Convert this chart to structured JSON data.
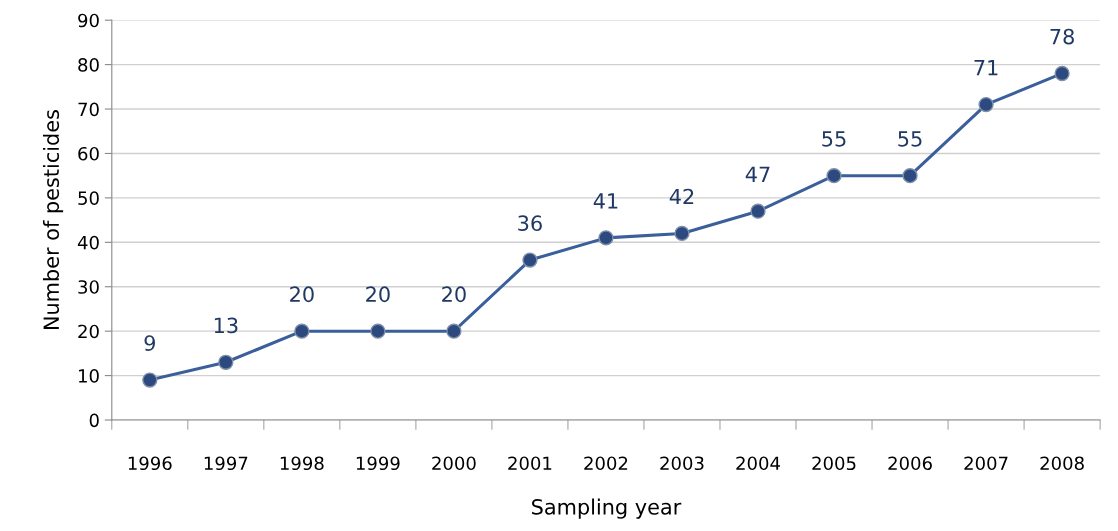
{
  "chart_data": {
    "type": "line",
    "xlabel": "Sampling year",
    "ylabel": "Number of pesticides",
    "categories": [
      "1996",
      "1997",
      "1998",
      "1999",
      "2000",
      "2001",
      "2002",
      "2003",
      "2004",
      "2005",
      "2006",
      "2007",
      "2008"
    ],
    "series": [
      {
        "color": "#3a5f9a",
        "values": [
          9,
          13,
          20,
          20,
          20,
          36,
          41,
          42,
          47,
          55,
          55,
          71,
          78
        ]
      }
    ],
    "ylim": [
      0,
      90
    ],
    "yticks": [
      0,
      10,
      20,
      30,
      40,
      50,
      60,
      70,
      80,
      90
    ],
    "grid": "y",
    "marker": "circle",
    "line_style": "solid",
    "data_labels": true
  }
}
